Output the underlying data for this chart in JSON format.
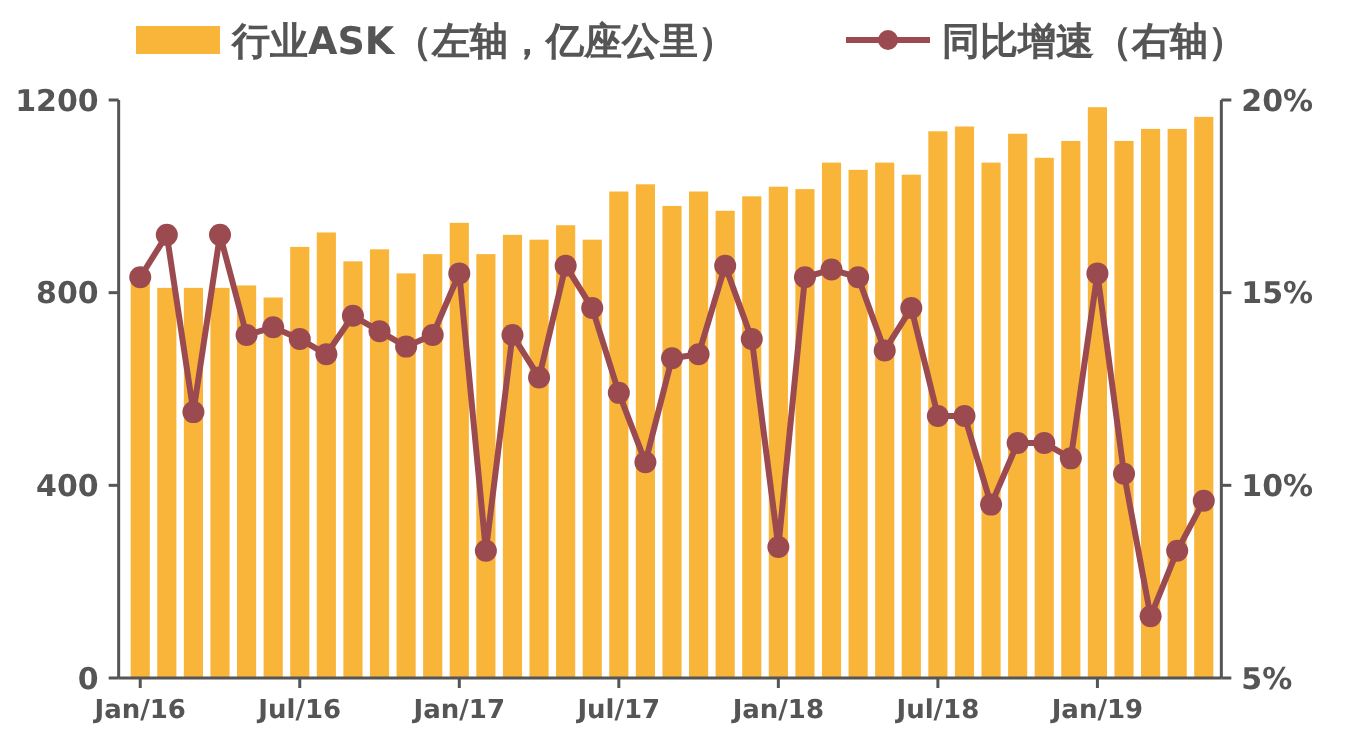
{
  "chart_data": {
    "type": "bar",
    "categories": [
      "Jan/16",
      null,
      null,
      null,
      null,
      null,
      "Jul/16",
      null,
      null,
      null,
      null,
      null,
      "Jan/17",
      null,
      null,
      null,
      null,
      null,
      "Jul/17",
      null,
      null,
      null,
      null,
      null,
      "Jan/18",
      null,
      null,
      null,
      null,
      null,
      "Jul/18",
      null,
      null,
      null,
      null,
      null,
      "Jan/19",
      null,
      null,
      null,
      null
    ],
    "series": [
      {
        "name": "行业ASK（左轴，亿座公里）",
        "color": "#f9b53a",
        "values": [
          820,
          810,
          810,
          810,
          815,
          790,
          895,
          925,
          865,
          890,
          840,
          880,
          945,
          880,
          920,
          910,
          940,
          910,
          1010,
          1025,
          980,
          1010,
          970,
          1000,
          1020,
          1015,
          1070,
          1055,
          1070,
          1045,
          1135,
          1145,
          1070,
          1130,
          1080,
          1115,
          1185,
          1115,
          1140,
          1140,
          1165
        ]
      },
      {
        "name": "同比增速（右轴）",
        "type": "line",
        "axis": "y2",
        "color": "#9b4a4f",
        "values": [
          15.4,
          16.5,
          11.9,
          16.5,
          13.9,
          14.1,
          13.8,
          13.4,
          14.4,
          14.0,
          13.6,
          13.9,
          15.5,
          8.3,
          13.9,
          12.8,
          15.7,
          14.6,
          12.4,
          10.6,
          13.3,
          13.4,
          15.7,
          13.8,
          8.4,
          15.4,
          15.6,
          15.4,
          13.5,
          14.6,
          11.8,
          11.8,
          9.5,
          11.1,
          11.1,
          10.7,
          15.5,
          10.3,
          6.6,
          8.3,
          9.6
        ]
      }
    ],
    "ylim": [
      0,
      1200
    ],
    "yticks": [
      0,
      400,
      800,
      1200
    ],
    "y2lim": [
      5,
      20
    ],
    "y2ticks": [
      {
        "value": 5,
        "label": "5%"
      },
      {
        "value": 10,
        "label": "10%"
      },
      {
        "value": 15,
        "label": "15%"
      },
      {
        "value": 20,
        "label": "20%"
      }
    ],
    "grid": false,
    "legend": "top",
    "marker": "circle",
    "line_style": "solid"
  }
}
